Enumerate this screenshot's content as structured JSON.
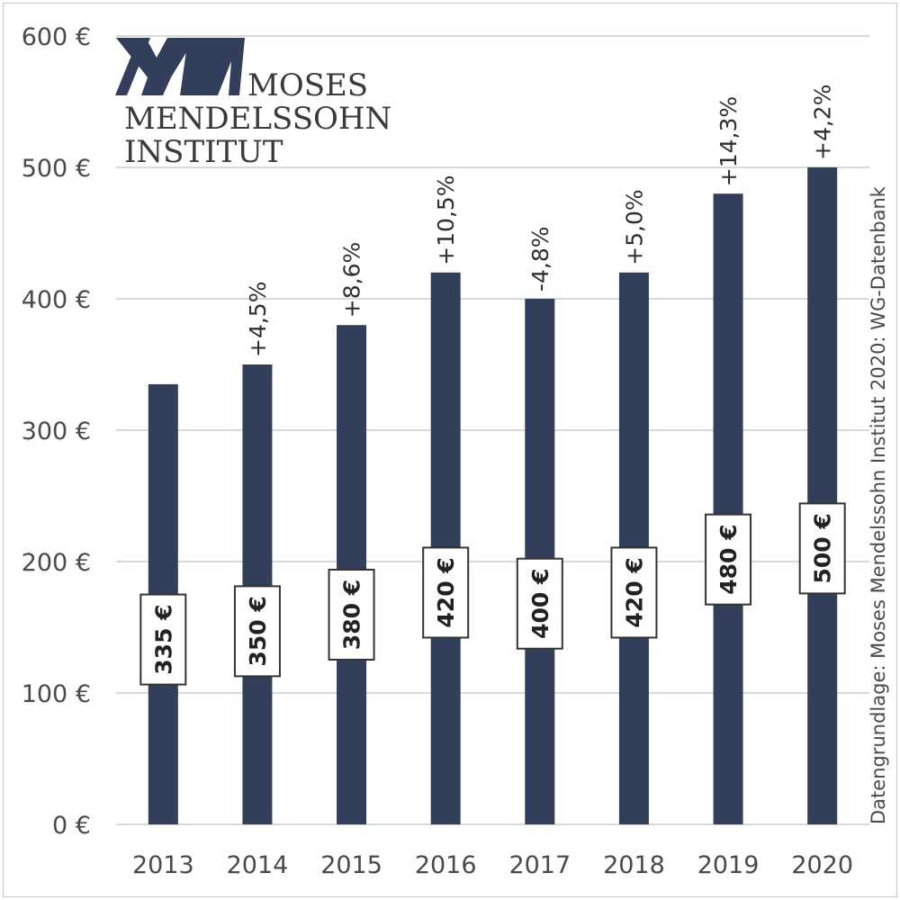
{
  "chart_data": {
    "type": "bar",
    "title": "",
    "xlabel": "",
    "ylabel": "",
    "categories": [
      "2013",
      "2014",
      "2015",
      "2016",
      "2017",
      "2018",
      "2019",
      "2020"
    ],
    "values": [
      335,
      350,
      380,
      420,
      400,
      420,
      480,
      500
    ],
    "value_labels": [
      "335 €",
      "350 €",
      "380 €",
      "420 €",
      "400 €",
      "420 €",
      "480 €",
      "500 €"
    ],
    "change_labels": [
      "",
      "+4,5%",
      "+8,6%",
      "+10,5%",
      "-4,8%",
      "+5,0%",
      "+14,3%",
      "+4,2%"
    ],
    "ylim": [
      0,
      600
    ],
    "yticks": [
      0,
      100,
      200,
      300,
      400,
      500,
      600
    ],
    "ytick_labels": [
      "0 €",
      "100 €",
      "200 €",
      "300 €",
      "400 €",
      "500 €",
      "600 €"
    ],
    "grid": true,
    "bar_color": "#333f5a",
    "grid_color": "#d9d9d9",
    "source_note": "Datengrundlage: Moses Mendelssohn Institut 2020: WG-Datenbank"
  },
  "logo": {
    "line1": "MOSES",
    "line2": "MENDELSSOHN",
    "line3": "INSTITUT",
    "color": "#333f5a"
  }
}
